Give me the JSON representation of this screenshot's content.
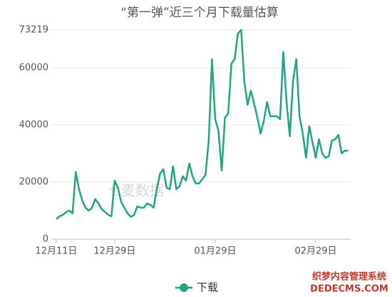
{
  "chart_data": {
    "type": "line",
    "title": "“第一弹”近三个月下载量估算",
    "categories": [
      "12月11日",
      null,
      null,
      null,
      null,
      null,
      null,
      null,
      null,
      null,
      null,
      null,
      null,
      null,
      null,
      null,
      null,
      null,
      "12月29日",
      null,
      null,
      null,
      null,
      null,
      null,
      null,
      null,
      null,
      null,
      null,
      null,
      null,
      null,
      null,
      null,
      null,
      null,
      null,
      null,
      null,
      null,
      null,
      null,
      null,
      null,
      null,
      null,
      null,
      null,
      "01月29日",
      null,
      null,
      null,
      null,
      null,
      null,
      null,
      null,
      null,
      null,
      null,
      null,
      null,
      null,
      null,
      null,
      null,
      null,
      null,
      null,
      null,
      null,
      null,
      null,
      null,
      null,
      null,
      null,
      null,
      null,
      "02月29日",
      null,
      null,
      null,
      null,
      null,
      null,
      null,
      null,
      null,
      null
    ],
    "series": [
      {
        "name": "下载",
        "color": "#1fa584",
        "values": [
          7000,
          8000,
          8500,
          9500,
          10000,
          9000,
          23500,
          17500,
          13500,
          11000,
          10000,
          11000,
          14000,
          12500,
          10500,
          9500,
          8500,
          8000,
          20500,
          18000,
          13000,
          11000,
          9000,
          7800,
          8500,
          11500,
          11000,
          11000,
          12500,
          12000,
          11000,
          17500,
          23000,
          24500,
          18000,
          17500,
          25500,
          17500,
          18500,
          22000,
          20500,
          26500,
          22000,
          19500,
          19500,
          21000,
          22500,
          34500,
          63000,
          42000,
          38000,
          24000,
          42500,
          44000,
          61500,
          63000,
          72000,
          73219,
          55000,
          47000,
          52000,
          47500,
          42500,
          37000,
          41500,
          48000,
          43000,
          43000,
          43000,
          42000,
          65500,
          48000,
          36000,
          55500,
          63000,
          43000,
          37000,
          28500,
          39500,
          34000,
          28500,
          35000,
          30000,
          28500,
          29000,
          34500,
          35000,
          36500,
          30000,
          31000,
          31000
        ]
      }
    ],
    "ylim": [
      0,
      73219
    ],
    "yticks": [
      0,
      20000,
      40000,
      60000,
      73219
    ],
    "grid": true,
    "legend": "bottom",
    "watermark": "七麦数据"
  },
  "site_mark": [
    "织梦内容管理系统",
    "DEDECMS.COM"
  ]
}
